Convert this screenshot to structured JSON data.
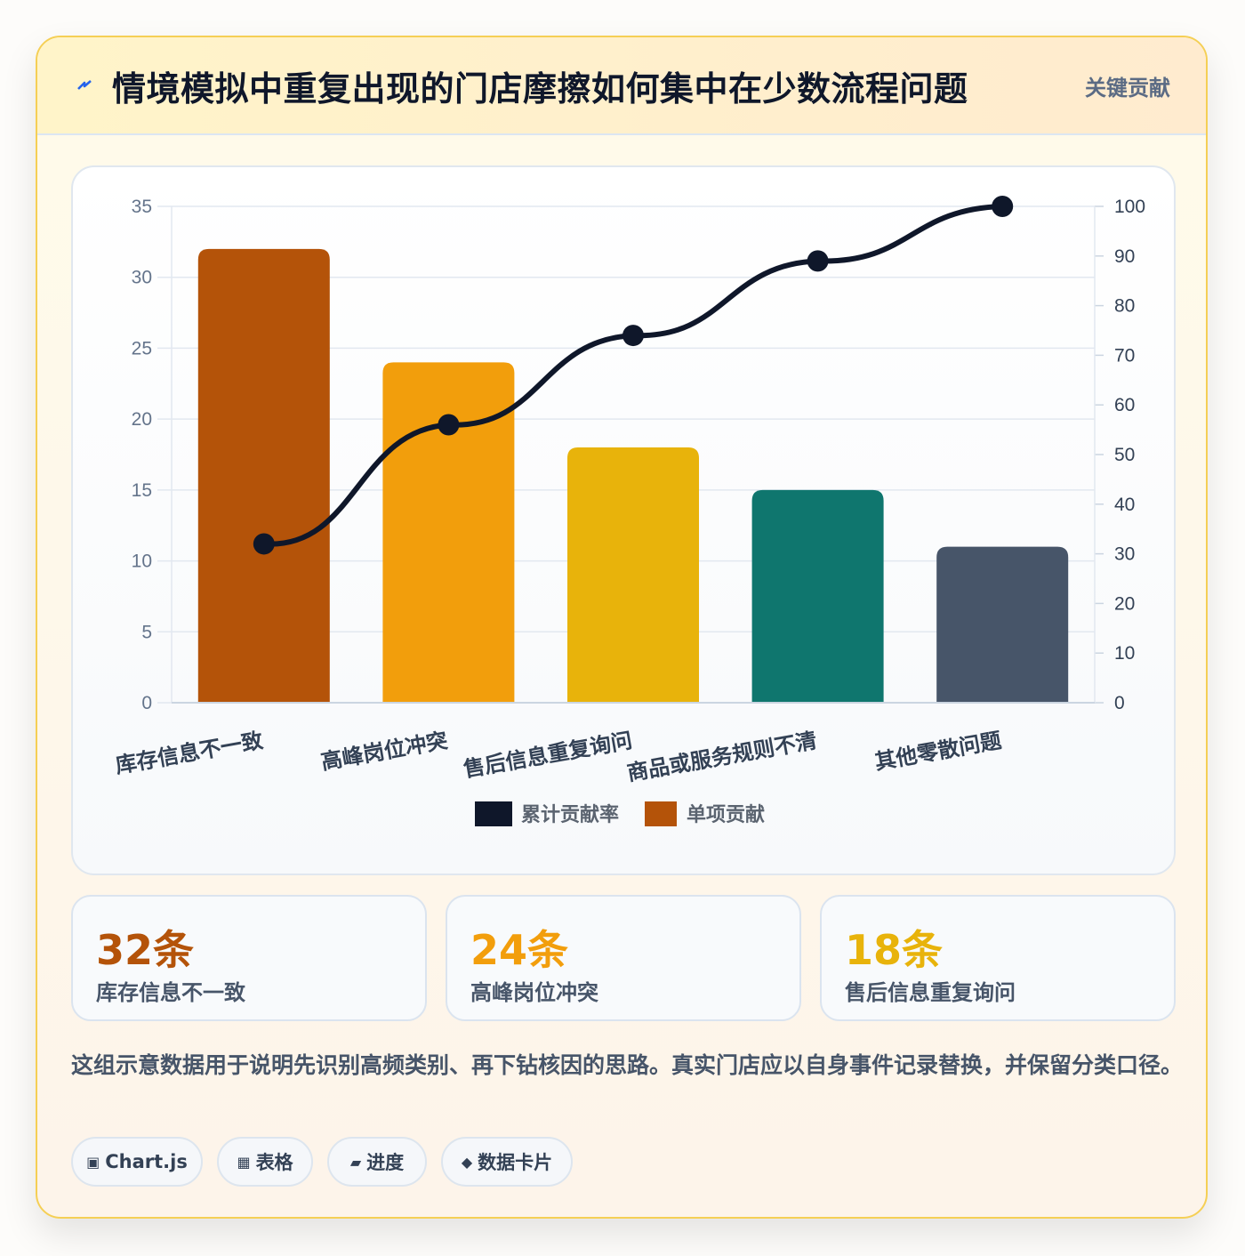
{
  "header": {
    "icon": "lightning-bolt-icon",
    "title": "情境模拟中重复出现的门店摩擦如何集中在少数流程问题",
    "badge": "关键贡献"
  },
  "chart_data": {
    "type": "bar",
    "categories": [
      "库存信息不一致",
      "高峰岗位冲突",
      "售后信息重复询问",
      "商品或服务规则不清",
      "其他零散问题"
    ],
    "series": [
      {
        "name": "单项贡献",
        "type": "bar",
        "axis": "left",
        "values": [
          32,
          24,
          18,
          15,
          11
        ],
        "colors": [
          "#b45309",
          "#f29e0c",
          "#e8b30b",
          "#0f766e",
          "#475569"
        ]
      },
      {
        "name": "累计贡献率",
        "type": "line",
        "axis": "right",
        "values": [
          32,
          56,
          74,
          89,
          100
        ],
        "color": "#0f172a"
      }
    ],
    "y_left": {
      "min": 0,
      "max": 35,
      "ticks": [
        "0",
        "5",
        "10",
        "15",
        "20",
        "25",
        "30",
        "35"
      ]
    },
    "y_right": {
      "min": 0,
      "max": 100,
      "ticks": [
        "0",
        "10",
        "20",
        "30",
        "40",
        "50",
        "60",
        "70",
        "80",
        "90",
        "100"
      ]
    },
    "legend": {
      "position": "bottom",
      "items": [
        {
          "label": "累计贡献率",
          "color": "#0f172a"
        },
        {
          "label": "单项贡献",
          "color": "#b45309"
        }
      ]
    },
    "grid": true
  },
  "stats": [
    {
      "value": "32条",
      "label": "库存信息不一致",
      "color": "#b45309"
    },
    {
      "value": "24条",
      "label": "高峰岗位冲突",
      "color": "#f29e0c"
    },
    {
      "value": "18条",
      "label": "售后信息重复询问",
      "color": "#e8b30b"
    }
  ],
  "note": "这组示意数据用于说明先识别高频类别、再下钻核因的思路。真实门店应以自身事件记录替换，并保留分类口径。",
  "tags": [
    {
      "icon": "▣",
      "icon_name": "chart-square-icon",
      "label": "Chart.js"
    },
    {
      "icon": "▦",
      "icon_name": "table-grid-icon",
      "label": "表格"
    },
    {
      "icon": "▰",
      "icon_name": "progress-bar-icon",
      "label": "进度"
    },
    {
      "icon": "◆",
      "icon_name": "diamond-icon",
      "label": "数据卡片"
    }
  ]
}
